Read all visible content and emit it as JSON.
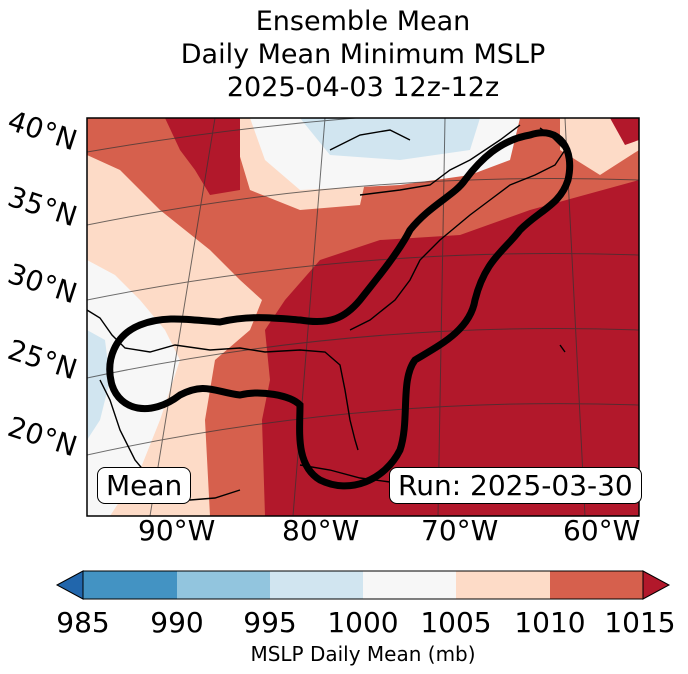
{
  "title": {
    "line1": "Ensemble Mean",
    "line2": "Daily Mean Minimum MSLP",
    "line3": "2025-04-03 12z-12z"
  },
  "map": {
    "lat_labels": [
      "40°N",
      "35°N",
      "30°N",
      "25°N",
      "20°N"
    ],
    "lon_labels": [
      "90°W",
      "80°W",
      "70°W",
      "60°W"
    ],
    "left_box": "Mean",
    "right_box": "Run: 2025-03-30"
  },
  "colorbar": {
    "label": "MSLP Daily Mean (mb)",
    "ticks": [
      "985",
      "990",
      "995",
      "1000",
      "1005",
      "1010",
      "1015"
    ],
    "colors": {
      "below": "#2166ac",
      "985-990": "#4393c3",
      "990-995": "#92c5de",
      "995-1000": "#d1e5f0",
      "1000-1005": "#f7f7f7",
      "1005-1010": "#fddbc7",
      "1010-1015": "#d6604d",
      "above": "#b2182b"
    }
  }
}
